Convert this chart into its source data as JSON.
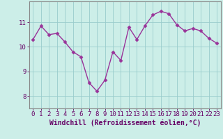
{
  "x": [
    0,
    1,
    2,
    3,
    4,
    5,
    6,
    7,
    8,
    9,
    10,
    11,
    12,
    13,
    14,
    15,
    16,
    17,
    18,
    19,
    20,
    21,
    22,
    23
  ],
  "y": [
    10.3,
    10.85,
    10.5,
    10.55,
    10.2,
    9.8,
    9.6,
    8.55,
    8.2,
    8.65,
    9.8,
    9.45,
    10.8,
    10.3,
    10.85,
    11.3,
    11.45,
    11.35,
    10.9,
    10.65,
    10.75,
    10.65,
    10.35,
    10.15
  ],
  "line_color": "#993399",
  "marker": "D",
  "marker_size": 2.5,
  "bg_color": "#cceee8",
  "grid_color": "#99cccc",
  "xlabel": "Windchill (Refroidissement éolien,°C)",
  "ylim": [
    7.5,
    11.85
  ],
  "xlim": [
    -0.5,
    23.5
  ],
  "yticks": [
    8,
    9,
    10,
    11
  ],
  "xticks": [
    0,
    1,
    2,
    3,
    4,
    5,
    6,
    7,
    8,
    9,
    10,
    11,
    12,
    13,
    14,
    15,
    16,
    17,
    18,
    19,
    20,
    21,
    22,
    23
  ],
  "xlabel_fontsize": 7,
  "tick_fontsize": 6.5,
  "line_width": 1.0,
  "label_color": "#660066",
  "spine_color": "#888888"
}
